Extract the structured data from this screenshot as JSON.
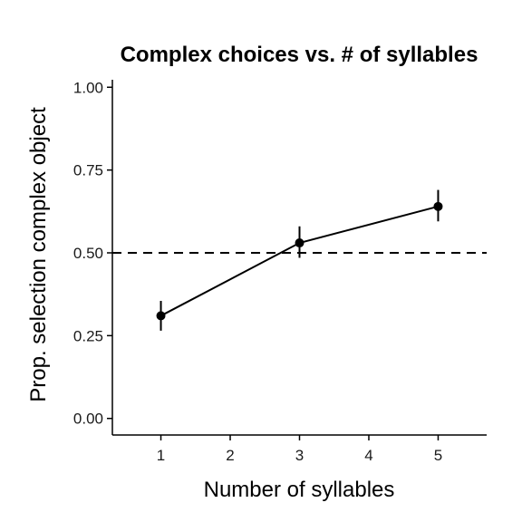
{
  "chart_data": {
    "type": "line",
    "title": "Complex choices vs. # of syllables",
    "xlabel": "Number of syllables",
    "ylabel": "Prop. selection complex object",
    "x_ticks": [
      "1",
      "2",
      "3",
      "4",
      "5"
    ],
    "y_ticks": [
      "0.00",
      "0.25",
      "0.50",
      "0.75",
      "1.00"
    ],
    "xlim": [
      0.3,
      5.7
    ],
    "ylim": [
      -0.05,
      1.05
    ],
    "grid": false,
    "reference_line": {
      "y": 0.5,
      "style": "dashed"
    },
    "series": [
      {
        "points": [
          {
            "x": 1,
            "y": 0.31,
            "err_low": 0.265,
            "err_high": 0.355
          },
          {
            "x": 3,
            "y": 0.53,
            "err_low": 0.485,
            "err_high": 0.58
          },
          {
            "x": 5,
            "y": 0.64,
            "err_low": 0.595,
            "err_high": 0.69
          }
        ]
      }
    ]
  },
  "colors": {
    "line": "#000000",
    "reference": "#000000",
    "axis": "#000000"
  }
}
